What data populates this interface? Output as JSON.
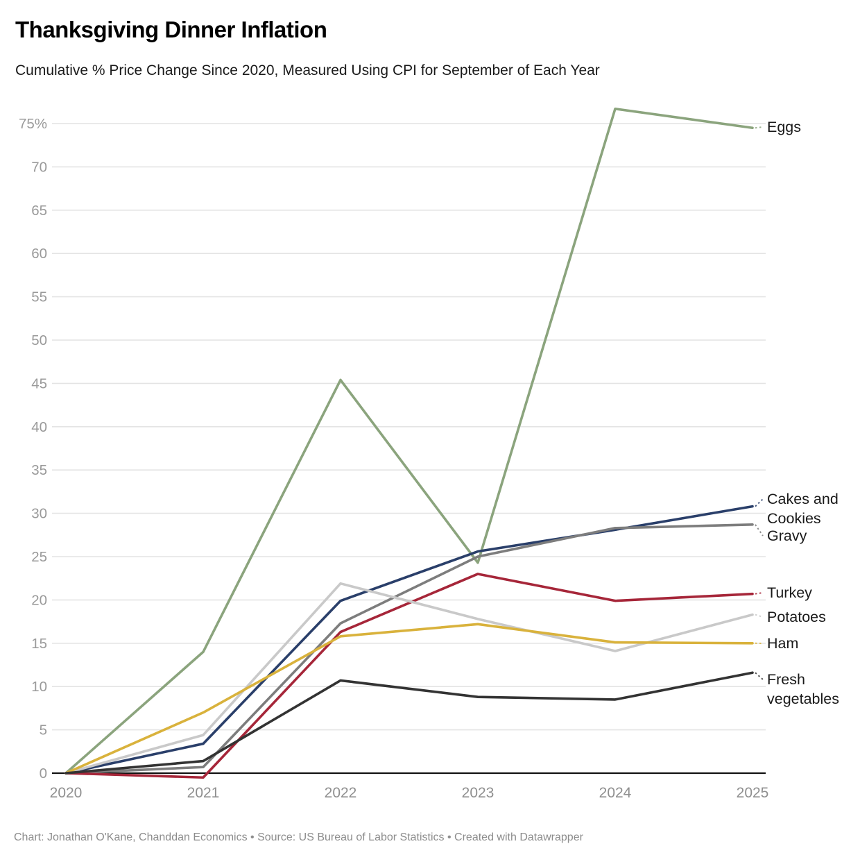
{
  "header": {
    "title": "Thanksgiving Dinner Inflation",
    "subtitle": "Cumulative % Price Change Since 2020, Measured Using CPI for September of Each Year"
  },
  "footer": {
    "text": "Chart: Jonathan O'Kane, Chanddan Economics • Source: US Bureau of Labor Statistics  • Created with Datawrapper"
  },
  "chart_data": {
    "type": "line",
    "title": "Thanksgiving Dinner Inflation",
    "subtitle": "Cumulative % Price Change Since 2020, Measured Using CPI for September of Each Year",
    "x": [
      2020,
      2021,
      2022,
      2023,
      2024,
      2025
    ],
    "x_tick_labels": [
      "2020",
      "2021",
      "2022",
      "2023",
      "2024",
      "2025"
    ],
    "ylim": [
      0,
      75
    ],
    "y_tick_step": 5,
    "y_tick_labels": [
      "0",
      "5",
      "10",
      "15",
      "20",
      "25",
      "30",
      "35",
      "40",
      "45",
      "50",
      "55",
      "60",
      "65",
      "70",
      "75%"
    ],
    "grid": true,
    "legend_position": "right-edge-labels",
    "xlabel": "",
    "ylabel": "Cumulative % price change since 2020",
    "series": [
      {
        "name": "Eggs",
        "label_lines": [
          "Eggs"
        ],
        "color": "#8ba47d",
        "values": [
          0,
          14.0,
          45.4,
          24.3,
          76.7,
          74.5
        ]
      },
      {
        "name": "Cakes and Cookies",
        "label_lines": [
          "Cakes and",
          "Cookies"
        ],
        "color": "#2a3f6a",
        "values": [
          0,
          3.4,
          19.9,
          25.6,
          28.1,
          30.8
        ]
      },
      {
        "name": "Gravy",
        "label_lines": [
          "Gravy"
        ],
        "color": "#7d7d7d",
        "values": [
          0,
          0.7,
          17.3,
          25.0,
          28.3,
          28.7
        ]
      },
      {
        "name": "Turkey",
        "label_lines": [
          "Turkey"
        ],
        "color": "#a62639",
        "values": [
          0,
          -0.5,
          16.3,
          23.0,
          19.9,
          20.7
        ]
      },
      {
        "name": "Potatoes",
        "label_lines": [
          "Potatoes"
        ],
        "color": "#c9c9c9",
        "values": [
          0,
          4.4,
          21.9,
          17.8,
          14.1,
          18.3
        ]
      },
      {
        "name": "Ham",
        "label_lines": [
          "Ham"
        ],
        "color": "#d9b23c",
        "values": [
          0,
          7.0,
          15.8,
          17.2,
          15.1,
          15.0
        ]
      },
      {
        "name": "Fresh vegetables",
        "label_lines": [
          "Fresh",
          "vegetables"
        ],
        "color": "#333333",
        "values": [
          0,
          1.4,
          10.7,
          8.8,
          8.5,
          11.6
        ]
      }
    ]
  }
}
